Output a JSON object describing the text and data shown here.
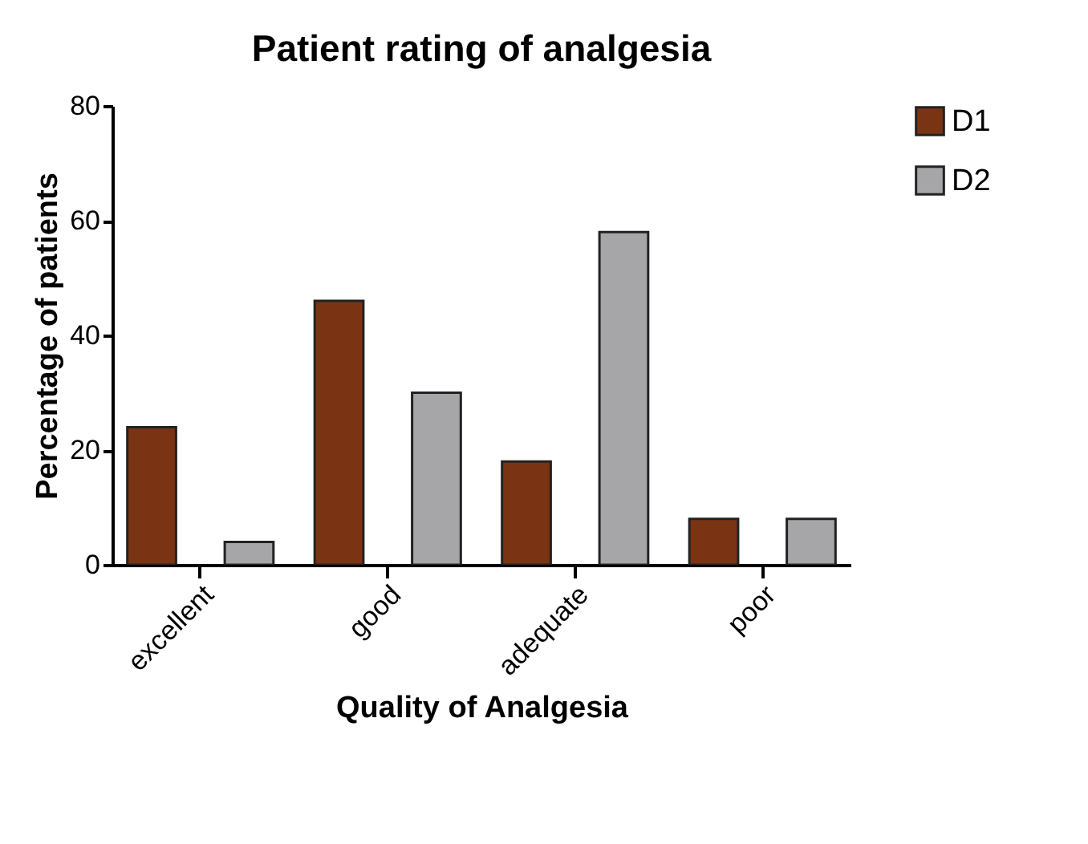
{
  "chart_data": {
    "type": "bar",
    "title": "Patient rating of analgesia",
    "xlabel": "Quality of Analgesia",
    "ylabel": "Percentage of patients",
    "categories": [
      "excellent",
      "good",
      "adequate",
      "poor"
    ],
    "series": [
      {
        "name": "D1",
        "color": "#7a3413",
        "values": [
          24,
          46,
          18,
          8
        ]
      },
      {
        "name": "D2",
        "color": "#a6a6a8",
        "values": [
          4,
          30,
          58,
          8
        ]
      }
    ],
    "ylim": [
      0,
      80
    ],
    "yticks": [
      0,
      20,
      40,
      60,
      80
    ],
    "grid": false,
    "legend": "top right"
  }
}
